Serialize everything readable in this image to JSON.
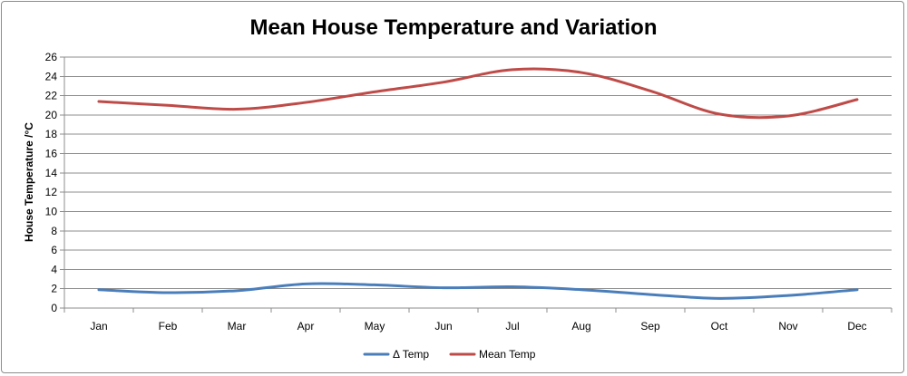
{
  "chart_data": {
    "type": "line",
    "title": "Mean House Temperature and Variation",
    "xlabel": "",
    "ylabel": "House Temperature /°C",
    "ylim": [
      0,
      26
    ],
    "yticks": [
      0,
      2,
      4,
      6,
      8,
      10,
      12,
      14,
      16,
      18,
      20,
      22,
      24,
      26
    ],
    "categories": [
      "Jan",
      "Feb",
      "Mar",
      "Apr",
      "May",
      "Jun",
      "Jul",
      "Aug",
      "Sep",
      "Oct",
      "Nov",
      "Dec"
    ],
    "grid": true,
    "smooth": true,
    "legend_position": "bottom",
    "series": [
      {
        "name": "Δ Temp",
        "color": "#4a7ebb",
        "values": [
          1.9,
          1.6,
          1.8,
          2.5,
          2.4,
          2.1,
          2.2,
          1.9,
          1.4,
          1.0,
          1.3,
          1.9
        ]
      },
      {
        "name": "Mean Temp",
        "color": "#be4b48",
        "values": [
          21.4,
          21.0,
          20.6,
          21.3,
          22.4,
          23.4,
          24.7,
          24.4,
          22.5,
          20.1,
          19.9,
          21.6
        ]
      }
    ]
  }
}
